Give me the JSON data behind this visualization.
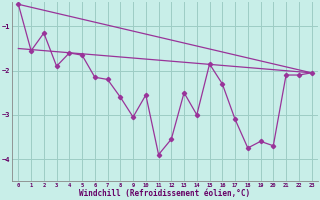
{
  "bg_color": "#c8eee8",
  "line_color": "#993399",
  "grid_color": "#9dccc4",
  "xlim": [
    -0.5,
    23.5
  ],
  "ylim": [
    -4.5,
    -0.45
  ],
  "yticks": [
    -4,
    -3,
    -2,
    -1
  ],
  "xticks": [
    0,
    1,
    2,
    3,
    4,
    5,
    6,
    7,
    8,
    9,
    10,
    11,
    12,
    13,
    14,
    15,
    16,
    17,
    18,
    19,
    20,
    21,
    22,
    23
  ],
  "xlabel": "Windchill (Refroidissement éolien,°C)",
  "main_x": [
    0,
    1,
    2,
    3,
    4,
    5,
    6,
    7,
    8,
    9,
    10,
    11,
    12,
    13,
    14,
    15,
    16,
    17,
    18,
    19,
    20,
    21,
    22,
    23
  ],
  "main_y": [
    -0.5,
    -1.55,
    -1.15,
    -1.9,
    -1.6,
    -1.65,
    -2.15,
    -2.2,
    -2.6,
    -3.05,
    -2.55,
    -3.9,
    -3.55,
    -2.5,
    -3.0,
    -1.85,
    -2.3,
    -3.1,
    -3.75,
    -3.6,
    -3.7,
    -2.1,
    -2.1,
    -2.05
  ],
  "trend1_x": [
    0,
    23
  ],
  "trend1_y": [
    -0.5,
    -2.05
  ],
  "trend2_x": [
    0,
    23
  ],
  "trend2_y": [
    -1.5,
    -2.05
  ]
}
